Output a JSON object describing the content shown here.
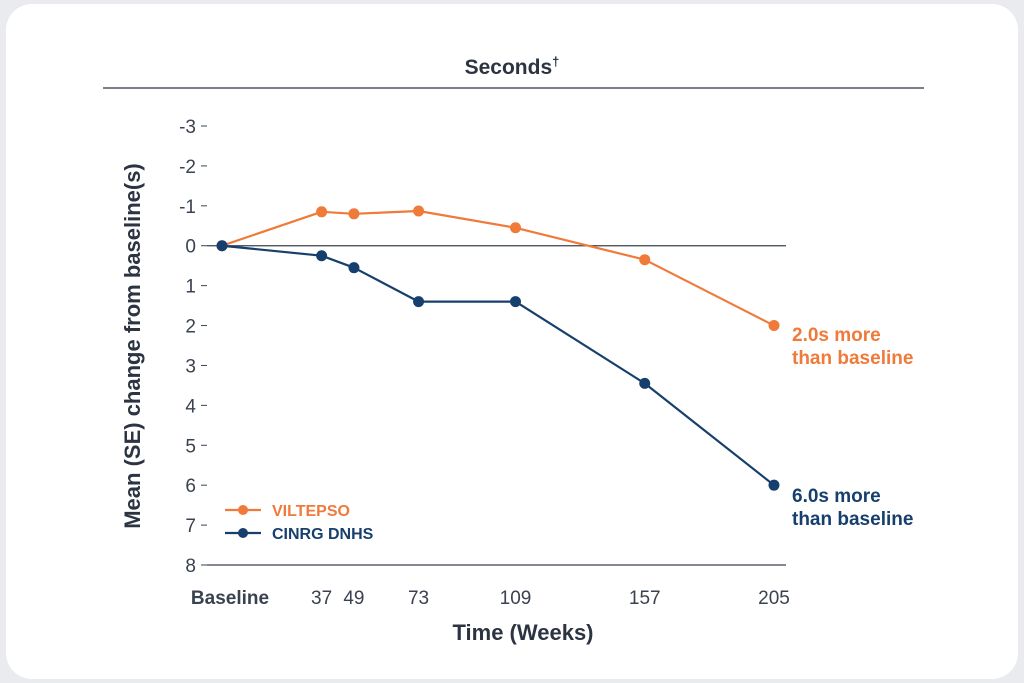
{
  "chart_data": {
    "type": "line",
    "title": "Seconds",
    "title_superscript": "†",
    "xlabel": "Time (Weeks)",
    "ylabel": "Mean (SE) change from baseline(s)",
    "x_ticks": [
      "Baseline",
      "37",
      "49",
      "73",
      "109",
      "157",
      "205"
    ],
    "y_ticks": [
      "-3",
      "-2",
      "-1",
      "0",
      "1",
      "2",
      "3",
      "4",
      "5",
      "6",
      "7",
      "8"
    ],
    "ylim": [
      -3,
      8
    ],
    "y_inverted": true,
    "series": [
      {
        "name": "VILTEPSO",
        "color": "#ef7a3a",
        "x": [
          0,
          37,
          49,
          73,
          109,
          157,
          205
        ],
        "y": [
          0,
          -0.85,
          -0.8,
          -0.87,
          -0.45,
          0.35,
          2.0
        ],
        "end_label": [
          "2.0s more",
          "than baseline"
        ]
      },
      {
        "name": "CINRG DNHS",
        "color": "#173f6d",
        "x": [
          0,
          37,
          49,
          73,
          109,
          157,
          205
        ],
        "y": [
          0,
          0.25,
          0.55,
          1.4,
          1.4,
          3.45,
          6.0
        ],
        "end_label": [
          "6.0s more",
          "than baseline"
        ]
      }
    ],
    "legend_position": "bottom-left"
  }
}
